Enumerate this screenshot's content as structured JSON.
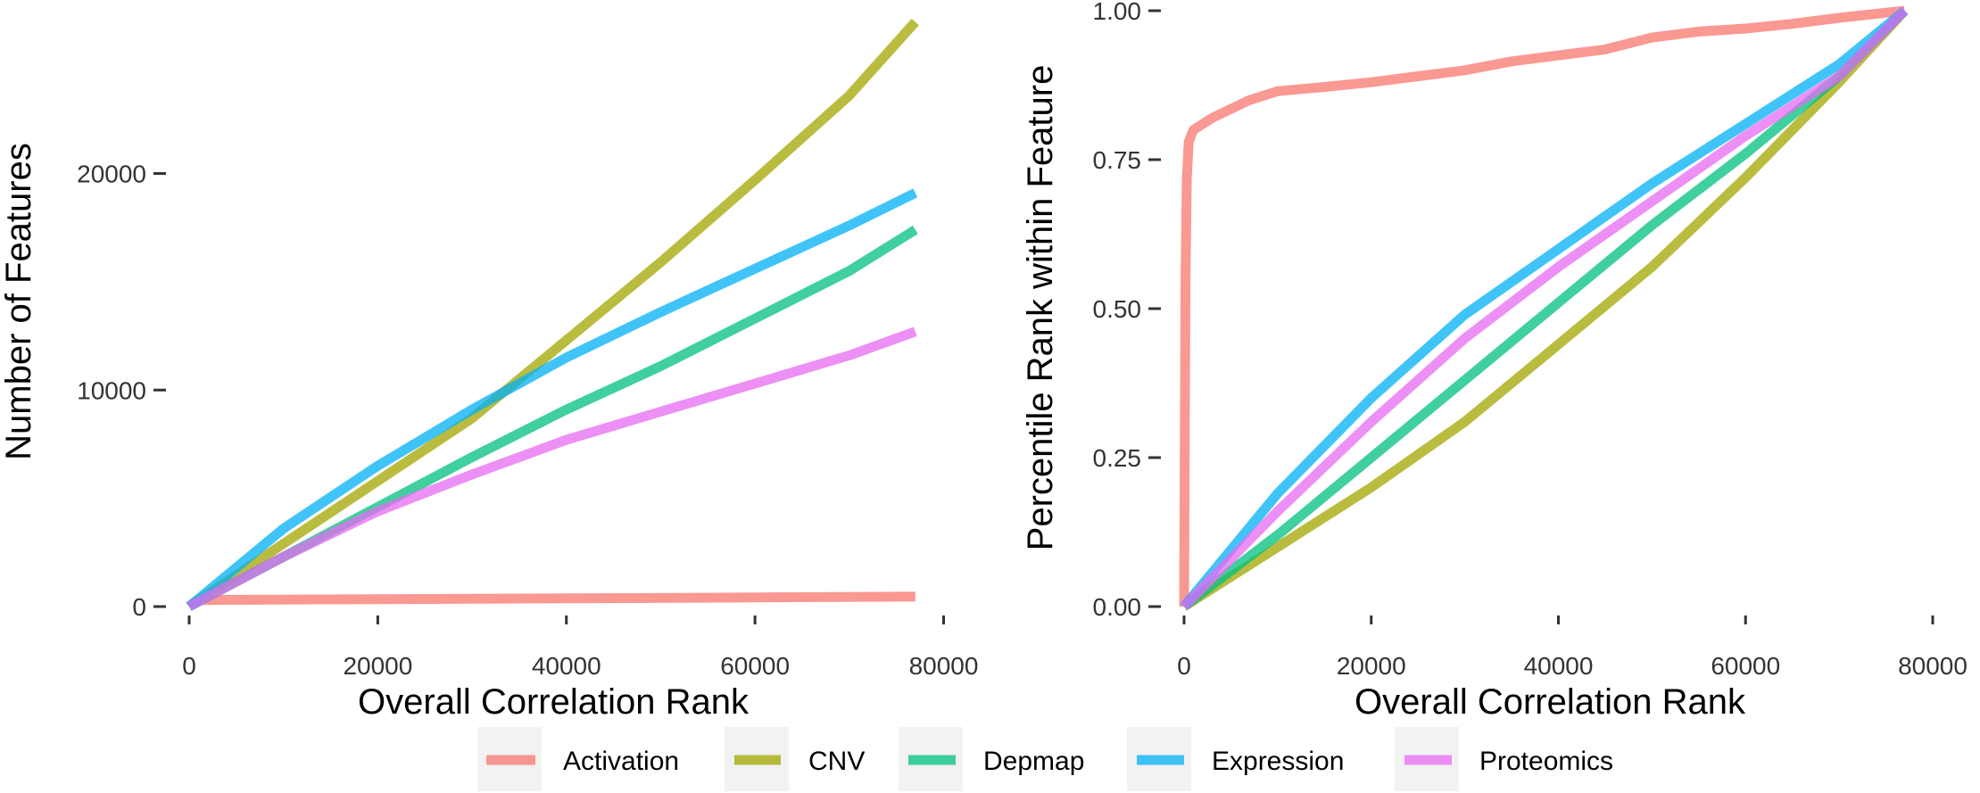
{
  "legend": {
    "items": [
      {
        "label": "Activation",
        "color": "#F8766D"
      },
      {
        "label": "CNV",
        "color": "#A3A500"
      },
      {
        "label": "Depmap",
        "color": "#00BF7D"
      },
      {
        "label": "Expression",
        "color": "#00B0F6"
      },
      {
        "label": "Proteomics",
        "color": "#E76BF3"
      }
    ]
  },
  "chart_data": [
    {
      "type": "line",
      "xlabel": "Overall Correlation Rank",
      "ylabel": "Number of Features",
      "xlim": [
        0,
        80000
      ],
      "ylim": [
        0,
        28000
      ],
      "xticks": [
        "0",
        "20000",
        "40000",
        "60000",
        "80000"
      ],
      "xtick_values": [
        0,
        20000,
        40000,
        60000,
        80000
      ],
      "yticks": [
        "0",
        "10000",
        "20000"
      ],
      "ytick_values": [
        0,
        10000,
        20000
      ],
      "grid": false,
      "series": [
        {
          "name": "Activation",
          "color": "#F8766D",
          "x": [
            0,
            400,
            1000,
            20000,
            40000,
            60000,
            77000
          ],
          "y": [
            0,
            150,
            300,
            340,
            380,
            420,
            460
          ]
        },
        {
          "name": "CNV",
          "color": "#A3A500",
          "x": [
            0,
            10000,
            20000,
            30000,
            40000,
            50000,
            60000,
            70000,
            77000
          ],
          "y": [
            0,
            2900,
            5800,
            8700,
            12300,
            15900,
            19700,
            23600,
            27000
          ]
        },
        {
          "name": "Depmap",
          "color": "#00BF7D",
          "x": [
            0,
            10000,
            20000,
            30000,
            40000,
            50000,
            60000,
            70000,
            77000
          ],
          "y": [
            0,
            2300,
            4600,
            6900,
            9100,
            11100,
            13300,
            15500,
            17400
          ]
        },
        {
          "name": "Expression",
          "color": "#00B0F6",
          "x": [
            0,
            10000,
            20000,
            30000,
            40000,
            50000,
            60000,
            70000,
            77000
          ],
          "y": [
            0,
            3600,
            6500,
            9100,
            11500,
            13600,
            15600,
            17600,
            19100
          ]
        },
        {
          "name": "Proteomics",
          "color": "#E76BF3",
          "x": [
            0,
            10000,
            20000,
            30000,
            40000,
            50000,
            60000,
            70000,
            77000
          ],
          "y": [
            0,
            2300,
            4400,
            6100,
            7700,
            9000,
            10300,
            11600,
            12700
          ]
        }
      ]
    },
    {
      "type": "line",
      "xlabel": "Overall Correlation Rank",
      "ylabel": "Percentile Rank within Feature",
      "xlim": [
        0,
        80000
      ],
      "ylim": [
        0,
        1
      ],
      "xticks": [
        "0",
        "20000",
        "40000",
        "60000",
        "80000"
      ],
      "xtick_values": [
        0,
        20000,
        40000,
        60000,
        80000
      ],
      "yticks": [
        "0.00",
        "0.25",
        "0.50",
        "0.75",
        "1.00"
      ],
      "ytick_values": [
        0,
        0.25,
        0.5,
        0.75,
        1.0
      ],
      "grid": false,
      "series": [
        {
          "name": "Activation",
          "color": "#F8766D",
          "x": [
            0,
            150,
            300,
            500,
            1000,
            3000,
            5000,
            7000,
            10000,
            15000,
            20000,
            25000,
            30000,
            35000,
            40000,
            45000,
            50000,
            55000,
            60000,
            65000,
            70000,
            77000
          ],
          "y": [
            0,
            0.55,
            0.72,
            0.78,
            0.8,
            0.82,
            0.835,
            0.85,
            0.865,
            0.872,
            0.88,
            0.89,
            0.9,
            0.915,
            0.925,
            0.935,
            0.955,
            0.965,
            0.97,
            0.978,
            0.988,
            1.0
          ]
        },
        {
          "name": "CNV",
          "color": "#A3A500",
          "x": [
            0,
            10000,
            20000,
            30000,
            40000,
            50000,
            60000,
            70000,
            77000
          ],
          "y": [
            0,
            0.1,
            0.2,
            0.31,
            0.44,
            0.57,
            0.72,
            0.88,
            1.0
          ]
        },
        {
          "name": "Depmap",
          "color": "#00BF7D",
          "x": [
            0,
            10000,
            20000,
            30000,
            40000,
            50000,
            60000,
            70000,
            77000
          ],
          "y": [
            0,
            0.12,
            0.25,
            0.38,
            0.51,
            0.64,
            0.76,
            0.89,
            1.0
          ]
        },
        {
          "name": "Expression",
          "color": "#00B0F6",
          "x": [
            0,
            10000,
            20000,
            30000,
            40000,
            50000,
            60000,
            70000,
            77000
          ],
          "y": [
            0,
            0.19,
            0.35,
            0.49,
            0.6,
            0.71,
            0.81,
            0.91,
            1.0
          ]
        },
        {
          "name": "Proteomics",
          "color": "#E76BF3",
          "x": [
            0,
            10000,
            20000,
            30000,
            40000,
            50000,
            60000,
            70000,
            77000
          ],
          "y": [
            0,
            0.16,
            0.31,
            0.45,
            0.57,
            0.68,
            0.79,
            0.89,
            1.0
          ]
        }
      ]
    }
  ]
}
